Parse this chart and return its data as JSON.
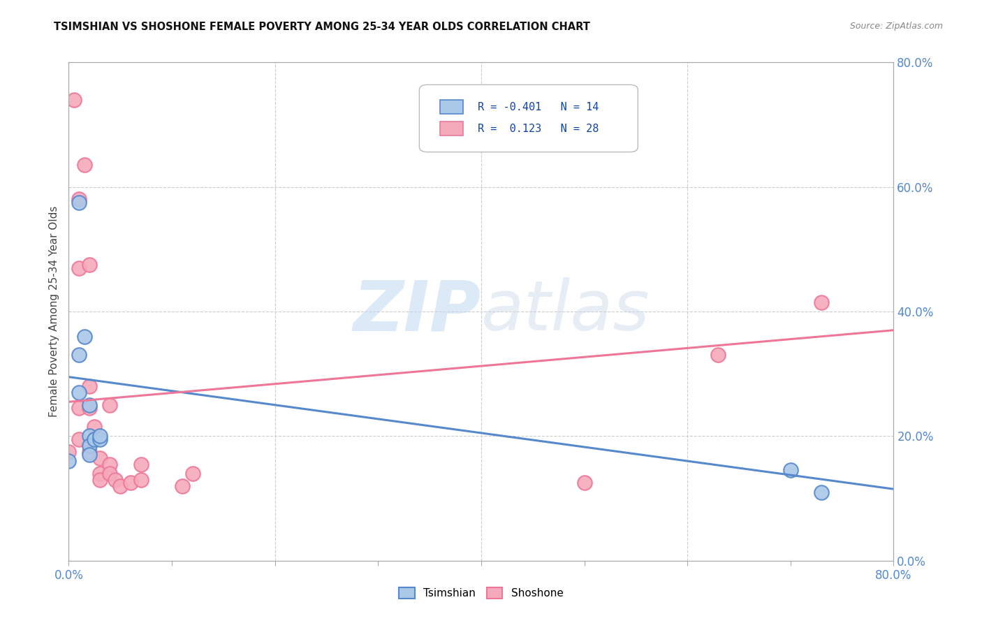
{
  "title": "TSIMSHIAN VS SHOSHONE FEMALE POVERTY AMONG 25-34 YEAR OLDS CORRELATION CHART",
  "source": "Source: ZipAtlas.com",
  "ylabel": "Female Poverty Among 25-34 Year Olds",
  "tsimshian_R": "-0.401",
  "tsimshian_N": "14",
  "shoshone_R": "0.123",
  "shoshone_N": "28",
  "tsimshian_color": "#aac8e8",
  "shoshone_color": "#f5aabb",
  "tsimshian_line_color": "#5588cc",
  "shoshone_line_color": "#ee7799",
  "watermark_zip": "ZIP",
  "watermark_atlas": "atlas",
  "tsimshian_points_x": [
    0.0,
    0.01,
    0.01,
    0.01,
    0.015,
    0.02,
    0.02,
    0.02,
    0.02,
    0.025,
    0.03,
    0.03,
    0.7,
    0.73
  ],
  "tsimshian_points_y": [
    0.16,
    0.575,
    0.33,
    0.27,
    0.36,
    0.25,
    0.2,
    0.185,
    0.17,
    0.195,
    0.195,
    0.2,
    0.145,
    0.11
  ],
  "shoshone_points_x": [
    0.0,
    0.005,
    0.01,
    0.01,
    0.01,
    0.01,
    0.015,
    0.02,
    0.02,
    0.02,
    0.02,
    0.025,
    0.03,
    0.03,
    0.03,
    0.04,
    0.04,
    0.04,
    0.045,
    0.05,
    0.06,
    0.07,
    0.07,
    0.11,
    0.12,
    0.5,
    0.63,
    0.73
  ],
  "shoshone_points_y": [
    0.175,
    0.74,
    0.58,
    0.47,
    0.245,
    0.195,
    0.635,
    0.475,
    0.28,
    0.245,
    0.175,
    0.215,
    0.165,
    0.14,
    0.13,
    0.155,
    0.25,
    0.14,
    0.13,
    0.12,
    0.125,
    0.13,
    0.155,
    0.12,
    0.14,
    0.125,
    0.33,
    0.415
  ],
  "tsimshian_trend_x0": 0.0,
  "tsimshian_trend_x1": 0.8,
  "tsimshian_trend_y0": 0.295,
  "tsimshian_trend_y1": 0.115,
  "shoshone_trend_x0": 0.0,
  "shoshone_trend_x1": 0.8,
  "shoshone_trend_y0": 0.255,
  "shoshone_trend_y1": 0.37,
  "xlim": [
    0.0,
    0.8
  ],
  "ylim": [
    0.0,
    0.8
  ],
  "x_minor_ticks": [
    0.1,
    0.2,
    0.3,
    0.4,
    0.5,
    0.6,
    0.7
  ],
  "x_label_ticks": [
    0.0,
    0.8
  ],
  "y_label_ticks": [
    0.0,
    0.2,
    0.4,
    0.6,
    0.8
  ],
  "grid_ticks": [
    0.0,
    0.2,
    0.4,
    0.6,
    0.8
  ],
  "tick_color": "#5588cc",
  "grid_color": "#cccccc",
  "grid_linestyle": "--"
}
